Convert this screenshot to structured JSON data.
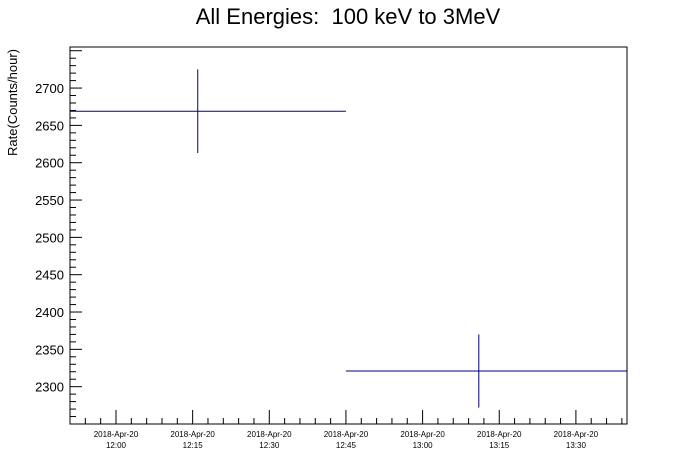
{
  "chart_data": {
    "type": "scatter",
    "title": "All Energies:  100 keV to 3MeV",
    "xlabel": "",
    "ylabel": "Rate(Counts/hour)",
    "x_axis": {
      "kind": "time",
      "range": [
        "2018-04-20 11:51",
        "2018-04-20 13:40"
      ],
      "tick_labels": [
        {
          "date": "2018-Apr-20",
          "time": "12:00"
        },
        {
          "date": "2018-Apr-20",
          "time": "12:15"
        },
        {
          "date": "2018-Apr-20",
          "time": "12:30"
        },
        {
          "date": "2018-Apr-20",
          "time": "12:45"
        },
        {
          "date": "2018-Apr-20",
          "time": "13:00"
        },
        {
          "date": "2018-Apr-20",
          "time": "13:15"
        },
        {
          "date": "2018-Apr-20",
          "time": "13:30"
        }
      ]
    },
    "y_axis": {
      "range": [
        2250,
        2755
      ],
      "ticks": [
        2300,
        2350,
        2400,
        2450,
        2500,
        2550,
        2600,
        2650,
        2700
      ]
    },
    "series": [
      {
        "points": [
          {
            "x": "2018-04-20 12:16",
            "x_start": "2018-04-20 11:51",
            "x_end": "2018-04-20 12:45",
            "y": 2669,
            "y_err": 56
          },
          {
            "x": "2018-04-20 13:11",
            "x_start": "2018-04-20 12:45",
            "x_end": "2018-04-20 13:40",
            "y": 2321,
            "y_err": 49
          }
        ]
      }
    ],
    "grid": false,
    "colors": {
      "series": "#000080",
      "axes": "#000000"
    }
  }
}
